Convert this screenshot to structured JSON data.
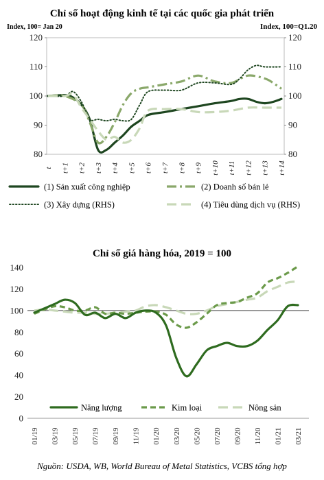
{
  "chart_data": [
    {
      "type": "line",
      "title": "Chỉ số hoạt động kinh tế tại các quốc gia phát triển",
      "left_axis_label": "Index, 100= Jan 20",
      "right_axis_label": "Index, 100=Q1.20",
      "ylim": [
        80,
        120
      ],
      "yticks": [
        80,
        90,
        100,
        110,
        120
      ],
      "categories": [
        "t",
        "t+1",
        "t+2",
        "t+3",
        "t+4",
        "t+5",
        "t+6",
        "t+7",
        "t+8",
        "t+9",
        "t+10",
        "t+11",
        "t+12",
        "t+13",
        "t+14"
      ],
      "series": [
        {
          "name": "(1) Sản xuất công nghiệp",
          "style": "solid",
          "color": "#1e4620",
          "x": [
            0,
            1,
            1.5,
            2,
            2.5,
            3,
            3.5,
            4,
            4.5,
            5,
            5.5,
            6,
            7,
            8,
            9,
            10,
            11,
            11.5,
            12,
            12.5,
            13,
            13.5,
            14
          ],
          "values": [
            100,
            100.3,
            99.5,
            97,
            92,
            81.5,
            81.5,
            84,
            86.5,
            89.5,
            91.5,
            93.5,
            94.5,
            95.5,
            96.5,
            97.5,
            98.3,
            99,
            99,
            98,
            97.5,
            98,
            99
          ]
        },
        {
          "name": "(2) Doanh số bán lẻ",
          "style": "dashdot",
          "color": "#8aa86a",
          "x": [
            0,
            1,
            2,
            2.5,
            3,
            3.5,
            4,
            4.5,
            5,
            5.5,
            6,
            7,
            8,
            9,
            10,
            11,
            12,
            13,
            13.5,
            14
          ],
          "values": [
            100,
            100,
            97,
            91,
            84,
            86,
            91,
            97,
            101,
            102.5,
            103,
            104,
            105,
            107,
            105,
            104.5,
            107,
            106,
            104.5,
            102.5
          ]
        },
        {
          "name": "(3) Xây dựng (RHS)",
          "style": "dotted",
          "color": "#1e4620",
          "x": [
            0,
            1,
            1.5,
            2,
            2.5,
            3,
            3.5,
            4,
            4.5,
            5,
            5.5,
            6,
            7,
            8,
            9,
            10,
            11,
            11.5,
            12,
            12.5,
            13,
            14
          ],
          "values": [
            100,
            100,
            101.5,
            98,
            92,
            92,
            91.5,
            92,
            91.5,
            92,
            97,
            101.5,
            102,
            102,
            104.5,
            104.5,
            104,
            106,
            109,
            110.5,
            110,
            110
          ]
        },
        {
          "name": "(4) Tiêu dùng dịch vụ (RHS)",
          "style": "longdash",
          "color": "#c8d8b8",
          "x": [
            0,
            1,
            1.5,
            2,
            2.5,
            3,
            3.5,
            4,
            4.5,
            5,
            5.5,
            6,
            7,
            8,
            9,
            10,
            11,
            12,
            13,
            14
          ],
          "values": [
            100,
            100,
            100.5,
            96,
            92,
            88,
            85,
            86,
            84,
            85,
            89,
            95,
            95.5,
            95.5,
            94.5,
            94.5,
            95,
            96,
            96,
            96
          ]
        }
      ]
    },
    {
      "type": "line",
      "title": "Chỉ số giá hàng hóa, 2019 = 100",
      "ylim": [
        0,
        140
      ],
      "yticks": [
        0,
        20,
        40,
        60,
        80,
        100,
        120,
        140
      ],
      "reference_line": 100,
      "categories": [
        "01/19",
        "03/19",
        "05/19",
        "07/19",
        "09/19",
        "11/19",
        "01/20",
        "03/20",
        "05/20",
        "07/20",
        "09/20",
        "11/20",
        "01/21",
        "03/21"
      ],
      "series": [
        {
          "name": "Năng lượng",
          "style": "solid",
          "color": "#2e6b1f",
          "x": [
            0,
            0.5,
            1,
            1.5,
            2,
            2.5,
            3,
            3.5,
            4,
            4.5,
            5,
            5.5,
            6,
            6.5,
            7,
            7.5,
            8,
            8.5,
            9,
            9.5,
            10,
            10.5,
            11,
            11.5,
            12,
            12.5,
            13
          ],
          "values": [
            98,
            102,
            106,
            110,
            107,
            96,
            98,
            93,
            97,
            93,
            98,
            100,
            98,
            86,
            56,
            39,
            50,
            63,
            67,
            70,
            67,
            67,
            72,
            82,
            91,
            104,
            105
          ]
        },
        {
          "name": "Kim loại",
          "style": "dashed",
          "color": "#6b9a4a",
          "x": [
            0,
            0.5,
            1,
            1.5,
            2,
            2.5,
            3,
            3.5,
            4,
            4.5,
            5,
            5.5,
            6,
            6.5,
            7,
            7.5,
            8,
            8.5,
            9,
            9.5,
            10,
            10.5,
            11,
            11.5,
            12,
            12.5,
            13
          ],
          "values": [
            97,
            101,
            104,
            103,
            100,
            100,
            103,
            97,
            98,
            97,
            98,
            99,
            99,
            96,
            87,
            84,
            89,
            97,
            105,
            107,
            108,
            112,
            116,
            126,
            130,
            135,
            141
          ]
        },
        {
          "name": "Nông sản",
          "style": "longdash",
          "color": "#c8d8b8",
          "x": [
            0,
            0.5,
            1,
            1.5,
            2,
            2.5,
            3,
            3.5,
            4,
            4.5,
            5,
            5.5,
            6,
            6.5,
            7,
            7.5,
            8,
            8.5,
            9,
            9.5,
            10,
            10.5,
            11,
            11.5,
            12,
            12.5,
            13
          ],
          "values": [
            100,
            101,
            100,
            99,
            98,
            98,
            97,
            97,
            98,
            99,
            100,
            104,
            105,
            103,
            100,
            97,
            97,
            100,
            104,
            106,
            108,
            110,
            112,
            118,
            122,
            126,
            127
          ]
        }
      ]
    }
  ],
  "source": "Nguồn: USDA, WB, World Bureau of Metal Statistics, VCBS tổng hợp"
}
